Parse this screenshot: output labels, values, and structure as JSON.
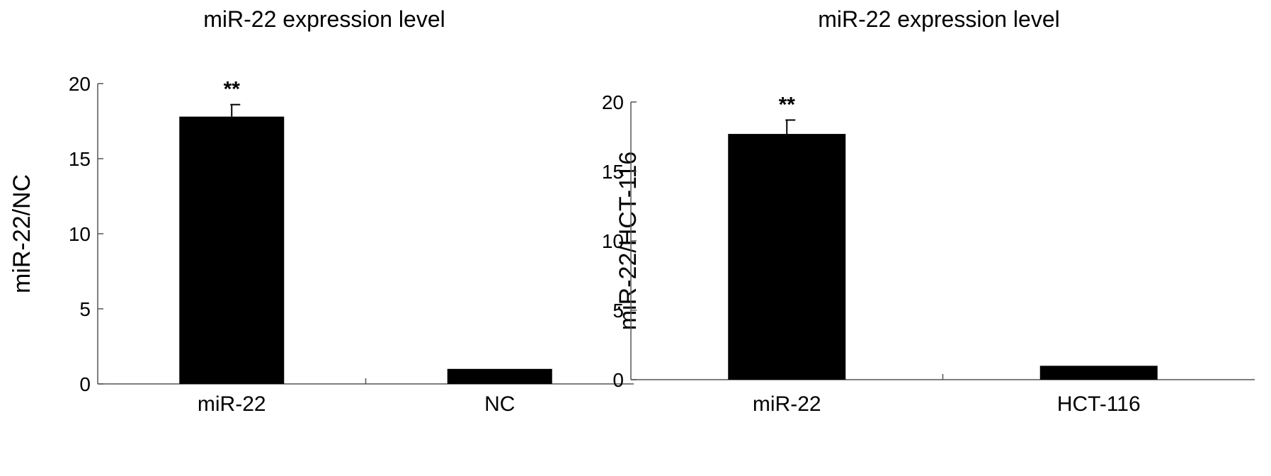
{
  "chart_data": [
    {
      "type": "bar",
      "title": "miR-22 expression level",
      "ylabel": "miR-22/NC",
      "xlabel": "",
      "categories": [
        "miR-22",
        "NC"
      ],
      "values": [
        17.8,
        1.0
      ],
      "errors": [
        0.8,
        0
      ],
      "annotations": [
        "**",
        ""
      ],
      "ylim": [
        0,
        20
      ],
      "yticks": [
        "0",
        "5",
        "10",
        "15",
        "20"
      ],
      "grid": false,
      "bar_color": "#000000"
    },
    {
      "type": "bar",
      "title": "miR-22 expression level",
      "ylabel": "miR-22/HCT-116",
      "xlabel": "",
      "categories": [
        "miR-22",
        "HCT-116"
      ],
      "values": [
        17.7,
        1.0
      ],
      "errors": [
        1.0,
        0
      ],
      "annotations": [
        "**",
        ""
      ],
      "ylim": [
        0,
        20
      ],
      "yticks": [
        "0",
        "5",
        "10",
        "15",
        "20"
      ],
      "grid": false,
      "bar_color": "#000000"
    }
  ]
}
